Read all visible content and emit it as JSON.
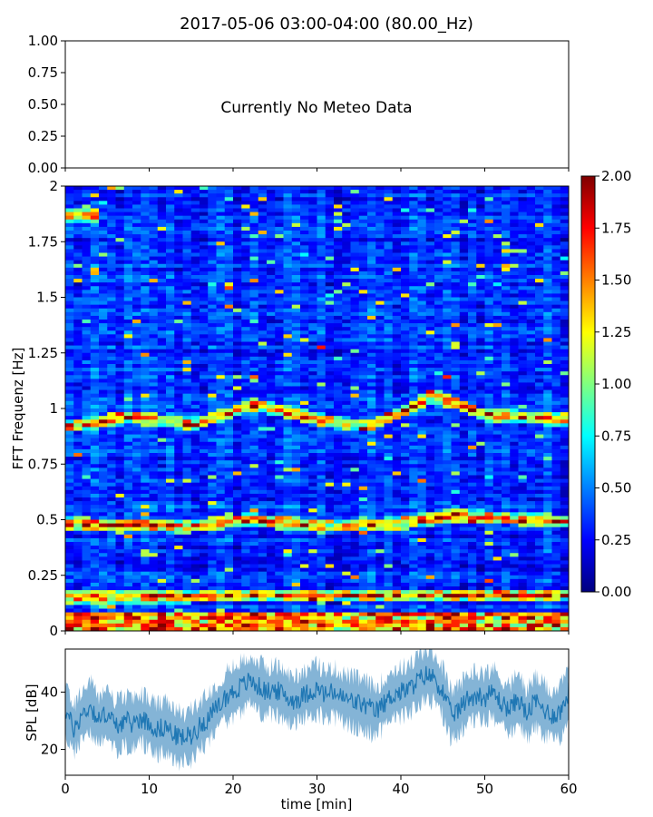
{
  "figure": {
    "title": "2017-05-06 03:00-04:00 (80.00_Hz)"
  },
  "chart_data": [
    {
      "type": "line",
      "panel": "meteo",
      "annotation": "Currently No Meteo Data",
      "ylim": [
        0,
        1
      ],
      "yticks": [
        "1.00",
        "0.75",
        "0.50",
        "0.25",
        "0.00"
      ],
      "series": []
    },
    {
      "type": "heatmap",
      "panel": "spectrogram",
      "ylabel": "FFT Frequenz [Hz]",
      "xlim": [
        0,
        60
      ],
      "ylim": [
        0,
        2
      ],
      "yticks": [
        "2",
        "1.75",
        "1.5",
        "1.25",
        "1",
        "0.75",
        "0.5",
        "0.25",
        "0"
      ],
      "colormap": "jet",
      "clim": [
        0,
        2
      ],
      "colorbar_ticks": [
        "2.00",
        "1.75",
        "1.50",
        "1.25",
        "1.00",
        "0.75",
        "0.50",
        "0.25",
        "0.00"
      ],
      "features": [
        {
          "description": "resonance band near 1 Hz",
          "x": [
            0,
            8,
            15,
            20,
            22,
            30,
            36,
            40,
            44,
            50,
            60
          ],
          "y": [
            0.92,
            0.96,
            0.93,
            0.98,
            1.02,
            0.95,
            0.92,
            0.98,
            1.06,
            0.97,
            0.95
          ]
        },
        {
          "description": "band near 0.5 Hz",
          "x": [
            0,
            15,
            22,
            30,
            40,
            46,
            60
          ],
          "y": [
            0.48,
            0.47,
            0.5,
            0.47,
            0.48,
            0.52,
            0.49
          ]
        },
        {
          "description": "band near 0.15 Hz",
          "x": [
            0,
            30,
            60
          ],
          "y": [
            0.15,
            0.16,
            0.16
          ]
        },
        {
          "description": "band near 1.87 Hz",
          "x": [
            0,
            3
          ],
          "y": [
            1.87,
            1.87
          ]
        }
      ]
    },
    {
      "type": "line",
      "panel": "spl",
      "xlabel": "time [min]",
      "ylabel": "SPL [dB]",
      "xlim": [
        0,
        60
      ],
      "ylim": [
        11,
        55
      ],
      "xticks": [
        "0",
        "10",
        "20",
        "30",
        "40",
        "50",
        "60"
      ],
      "yticks": [
        "40",
        "20"
      ],
      "color": "#1f77b4",
      "series": [
        {
          "x": [
            0,
            1,
            2,
            3,
            4,
            5,
            6,
            7,
            8,
            9,
            10,
            11,
            12,
            13,
            14,
            15,
            16,
            17,
            18,
            19,
            20,
            21,
            22,
            23,
            24,
            25,
            26,
            27,
            28,
            29,
            30,
            31,
            32,
            33,
            34,
            35,
            36,
            37,
            38,
            39,
            40,
            41,
            42,
            43,
            44,
            45,
            46,
            47,
            48,
            49,
            50,
            51,
            52,
            53,
            54,
            55,
            56,
            57,
            58,
            59,
            60
          ],
          "values": [
            34,
            27,
            32,
            35,
            30,
            33,
            28,
            30,
            29,
            31,
            29,
            27,
            28,
            25,
            24,
            25,
            28,
            31,
            34,
            38,
            40,
            42,
            44,
            42,
            40,
            41,
            39,
            37,
            38,
            40,
            41,
            39,
            40,
            38,
            37,
            36,
            35,
            33,
            36,
            39,
            40,
            41,
            44,
            46,
            45,
            40,
            32,
            34,
            38,
            39,
            38,
            40,
            36,
            34,
            38,
            32,
            37,
            34,
            32,
            33,
            40
          ]
        }
      ]
    }
  ]
}
